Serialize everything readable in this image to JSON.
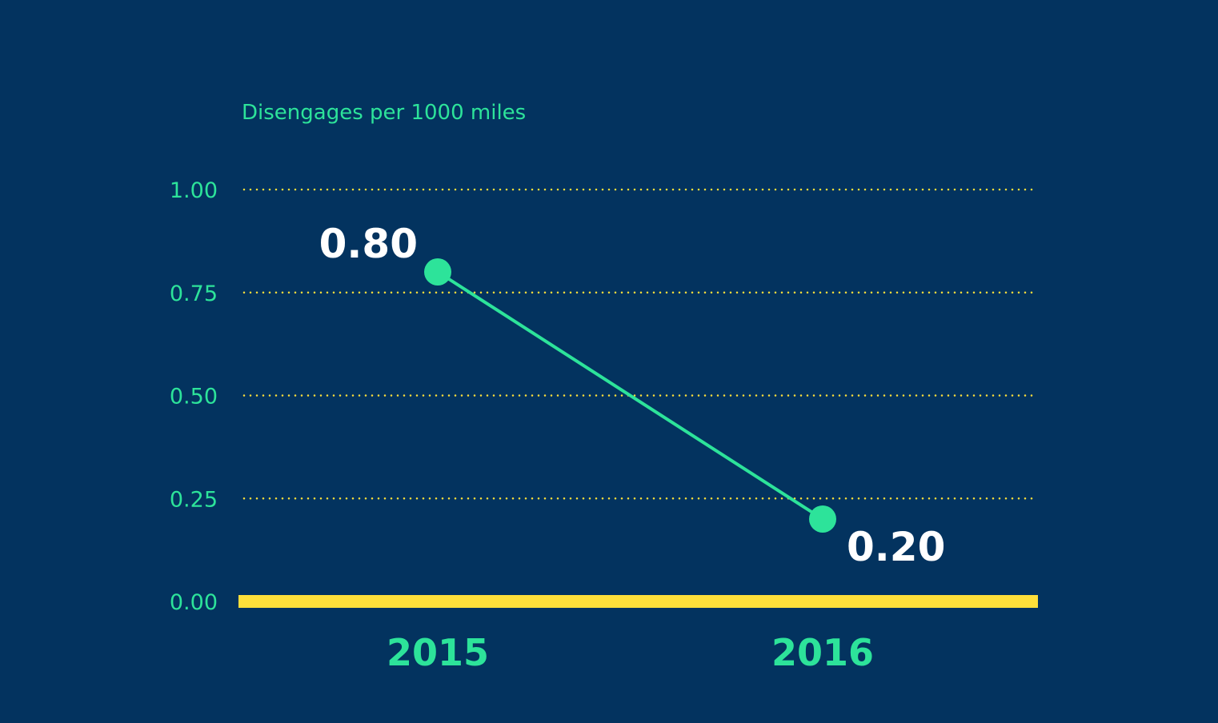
{
  "chart_data": {
    "type": "line",
    "ylabel": "Disengages per 1000 miles",
    "categories": [
      "2015",
      "2016"
    ],
    "values": [
      0.8,
      0.2
    ],
    "data_labels": [
      "0.80",
      "0.20"
    ],
    "yticks": [
      0.0,
      0.25,
      0.5,
      0.75,
      1.0
    ],
    "ytick_labels": [
      "0.00",
      "0.25",
      "0.50",
      "0.75",
      "1.00"
    ],
    "ylim": [
      0,
      1
    ],
    "grid": true,
    "colors": {
      "background": "#03335f",
      "line": "#2de39a",
      "text_accent": "#2de39a",
      "grid": "#ffe03a",
      "baseline": "#ffe03a",
      "data_label": "#ffffff"
    }
  }
}
